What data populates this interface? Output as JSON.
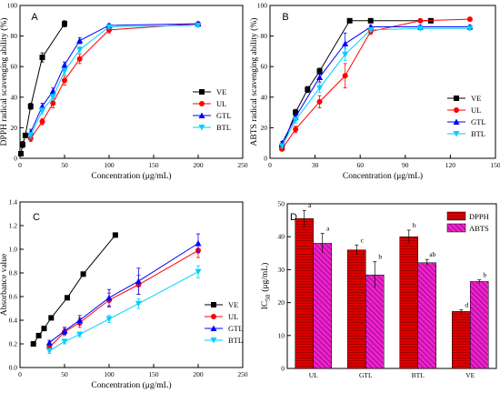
{
  "chart_data": [
    {
      "panel": "A",
      "type": "line",
      "ylabel": "DPPH radical scavenging ability (%)",
      "xlabel": "Concentration (μg/mL)",
      "xlim": [
        0,
        250
      ],
      "ylim": [
        0,
        100
      ],
      "xticks": [
        0,
        50,
        100,
        150,
        200,
        250
      ],
      "yticks": [
        0,
        20,
        40,
        60,
        80,
        100
      ],
      "legend_position": "right",
      "series": [
        {
          "name": "VE",
          "color": "#000000",
          "marker": "square",
          "x": [
            1,
            3,
            6,
            12,
            25,
            50
          ],
          "y": [
            3,
            9,
            15,
            34,
            66,
            88
          ],
          "err": [
            1,
            2,
            1,
            2,
            3,
            2
          ]
        },
        {
          "name": "UL",
          "color": "#ff0000",
          "marker": "circle",
          "x": [
            12,
            25,
            37,
            50,
            67,
            100,
            200
          ],
          "y": [
            13,
            24,
            36,
            51,
            65,
            84,
            88
          ],
          "err": [
            2,
            2,
            3,
            3,
            3,
            2,
            1
          ]
        },
        {
          "name": "GTL",
          "color": "#0000ff",
          "marker": "triangle",
          "x": [
            12,
            25,
            37,
            50,
            67,
            100,
            200
          ],
          "y": [
            17,
            34,
            44,
            61,
            77,
            87,
            88
          ],
          "err": [
            2,
            2,
            2,
            2,
            2,
            1,
            1
          ]
        },
        {
          "name": "BTL",
          "color": "#00cfff",
          "marker": "tridown",
          "x": [
            12,
            25,
            37,
            50,
            67,
            100,
            200
          ],
          "y": [
            15,
            31,
            40,
            57,
            71,
            86,
            87
          ],
          "err": [
            2,
            2,
            2,
            2,
            2,
            1,
            1
          ]
        }
      ]
    },
    {
      "panel": "B",
      "type": "line",
      "ylabel": "ABTS radical scavenging ability (%)",
      "xlabel": "Concentration (μg/mL)",
      "xlim": [
        0,
        150
      ],
      "ylim": [
        0,
        100
      ],
      "xticks": [
        0,
        30,
        60,
        90,
        120,
        150
      ],
      "yticks": [
        0,
        20,
        40,
        60,
        80,
        100
      ],
      "legend_position": "right",
      "series": [
        {
          "name": "VE",
          "color": "#000000",
          "marker": "square",
          "x": [
            8,
            17,
            25,
            33,
            53,
            67,
            107
          ],
          "y": [
            7,
            30,
            45,
            57,
            90,
            90,
            90
          ],
          "err": [
            1,
            2,
            2,
            2,
            1,
            1,
            1
          ]
        },
        {
          "name": "UL",
          "color": "#ff0000",
          "marker": "circle",
          "x": [
            8,
            17,
            33,
            50,
            67,
            100,
            133
          ],
          "y": [
            6,
            19,
            37,
            54,
            83,
            90,
            91
          ],
          "err": [
            1,
            2,
            4,
            8,
            2,
            1,
            1
          ]
        },
        {
          "name": "GTL",
          "color": "#0000ff",
          "marker": "triangle",
          "x": [
            8,
            17,
            33,
            50,
            67,
            100,
            133
          ],
          "y": [
            10,
            27,
            53,
            75,
            86,
            86,
            86
          ],
          "err": [
            1,
            2,
            3,
            7,
            1,
            1,
            1
          ]
        },
        {
          "name": "BTL",
          "color": "#00cfff",
          "marker": "tridown",
          "x": [
            8,
            17,
            33,
            50,
            67,
            100,
            133
          ],
          "y": [
            8,
            25,
            46,
            68,
            84,
            85,
            85
          ],
          "err": [
            1,
            2,
            3,
            4,
            1,
            1,
            1
          ]
        }
      ]
    },
    {
      "panel": "C",
      "type": "line",
      "ylabel": "Absorbance value",
      "xlabel": "Concentration (μg/mL)",
      "xlim": [
        0,
        250
      ],
      "ylim": [
        0.0,
        1.4
      ],
      "xticks": [
        0,
        50,
        100,
        150,
        200,
        250
      ],
      "yticks": [
        0.0,
        0.2,
        0.4,
        0.6,
        0.8,
        1.0,
        1.2,
        1.4
      ],
      "legend_position": "right",
      "series": [
        {
          "name": "VE",
          "color": "#000000",
          "marker": "square",
          "x": [
            15,
            21,
            27,
            35,
            53,
            71,
            107
          ],
          "y": [
            0.2,
            0.27,
            0.33,
            0.42,
            0.59,
            0.79,
            1.12
          ],
          "err": [
            0.01,
            0.01,
            0.01,
            0.01,
            0.01,
            0.01,
            0.01
          ]
        },
        {
          "name": "UL",
          "color": "#ff0000",
          "marker": "circle",
          "x": [
            33,
            50,
            67,
            100,
            133,
            200
          ],
          "y": [
            0.17,
            0.3,
            0.38,
            0.57,
            0.7,
            0.99
          ],
          "err": [
            0.02,
            0.03,
            0.04,
            0.06,
            0.08,
            0.06
          ]
        },
        {
          "name": "GTL",
          "color": "#0000ff",
          "marker": "triangle",
          "x": [
            33,
            50,
            67,
            100,
            133,
            200
          ],
          "y": [
            0.21,
            0.31,
            0.4,
            0.59,
            0.73,
            1.05
          ],
          "err": [
            0.02,
            0.03,
            0.04,
            0.07,
            0.11,
            0.08
          ]
        },
        {
          "name": "BTL",
          "color": "#00cfff",
          "marker": "tridown",
          "x": [
            33,
            50,
            67,
            100,
            133,
            200
          ],
          "y": [
            0.14,
            0.22,
            0.28,
            0.41,
            0.54,
            0.81
          ],
          "err": [
            0.02,
            0.02,
            0.02,
            0.03,
            0.04,
            0.05
          ]
        }
      ]
    },
    {
      "panel": "D",
      "type": "bar",
      "ylabel": "IC50 (μg/mL)",
      "ylabel_main": "IC",
      "ylabel_sub": "50",
      "ylabel_unit": "(μg/mL)",
      "ylim": [
        0,
        50
      ],
      "yticks": [
        0,
        10,
        20,
        30,
        40,
        50
      ],
      "categories": [
        "UL",
        "GTL",
        "BTL",
        "VE"
      ],
      "legend_position": "top-right",
      "series": [
        {
          "name": "DPPH",
          "color": "#dd0000",
          "values": [
            45.5,
            36.0,
            40.0,
            17.3
          ],
          "err": [
            2.5,
            1.5,
            2.0,
            0.5
          ],
          "labels": [
            "a",
            "c",
            "b",
            "d"
          ]
        },
        {
          "name": "ABTS",
          "color": "#ee22cc",
          "values": [
            38.0,
            28.4,
            32.1,
            26.4
          ],
          "err": [
            3.0,
            4.0,
            1.0,
            0.5
          ],
          "labels": [
            "a",
            "b",
            "ab",
            "b"
          ]
        }
      ]
    }
  ]
}
